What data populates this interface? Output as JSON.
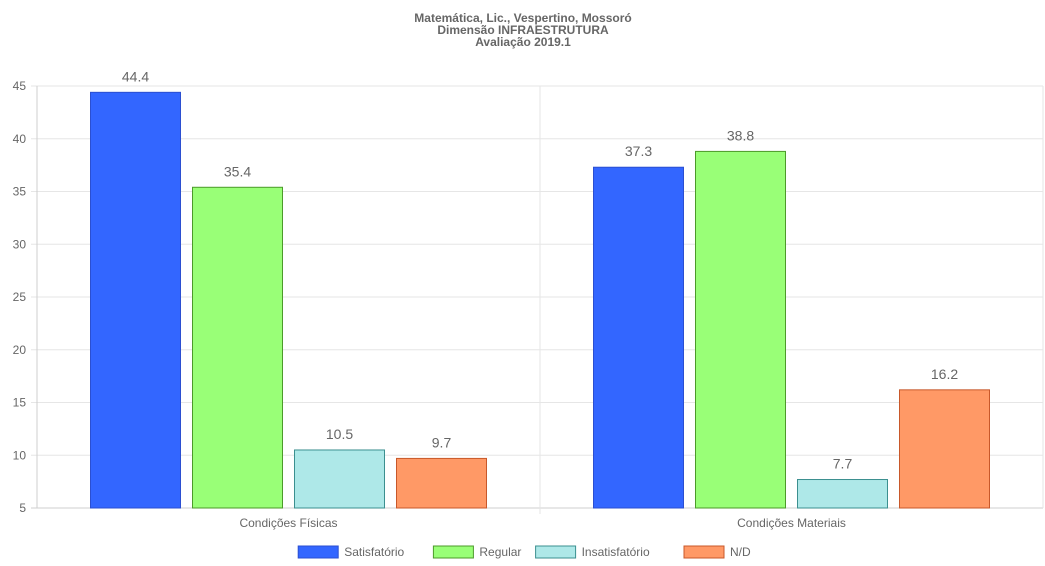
{
  "chart_data": {
    "type": "bar",
    "title_lines": [
      "Matemática, Lic., Vespertino, Mossoró",
      "Dimensão INFRAESTRUTURA",
      "Avaliação 2019.1"
    ],
    "categories": [
      "Condições Físicas",
      "Condições Materiais"
    ],
    "series": [
      {
        "name": "Satisfatório",
        "values": [
          44.4,
          37.3
        ],
        "color": "#3366ff",
        "border": "#2b4fd1"
      },
      {
        "name": "Regular",
        "values": [
          35.4,
          38.8
        ],
        "color": "#99ff77",
        "border": "#4c9a2a"
      },
      {
        "name": "Insatisfatório",
        "values": [
          10.5,
          7.7
        ],
        "color": "#aee8e8",
        "border": "#3b8f8f"
      },
      {
        "name": "N/D",
        "values": [
          9.7,
          16.2
        ],
        "color": "#ff9966",
        "border": "#c8582a"
      }
    ],
    "ylim": [
      5,
      45
    ],
    "yticks": [
      5,
      10,
      15,
      20,
      25,
      30,
      35,
      40,
      45
    ],
    "grid": true,
    "legend_position": "bottom",
    "xlabel": "",
    "ylabel": ""
  }
}
